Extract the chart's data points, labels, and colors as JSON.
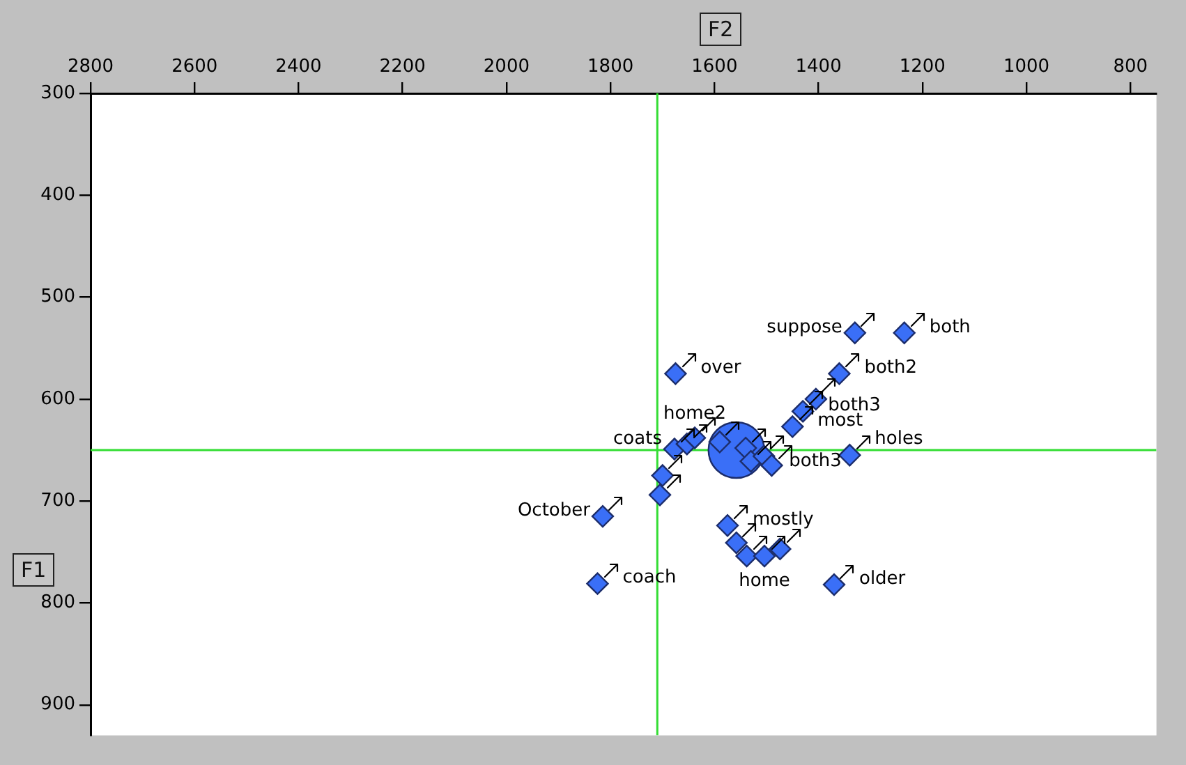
{
  "chart_data": {
    "type": "scatter",
    "xlabel": "F2",
    "ylabel": "F1",
    "xlim": [
      2800,
      750
    ],
    "xticks": [
      2800,
      2600,
      2400,
      2200,
      2000,
      1800,
      1600,
      1400,
      1200,
      1000,
      800
    ],
    "ylim": [
      930,
      300
    ],
    "yticks": [
      300,
      400,
      500,
      600,
      700,
      800,
      900
    ],
    "ref_lines": [
      {
        "axis": "x",
        "value": 1710,
        "color": "#33dd33"
      },
      {
        "axis": "y",
        "value": 650,
        "color": "#33dd33"
      }
    ],
    "series": [
      {
        "color": "#3a6ff7",
        "marker": "diamond",
        "x": [
          1330,
          1235,
          1675,
          1360,
          1405,
          1430,
          1450,
          1340,
          1590,
          1540,
          1530,
          1505,
          1490,
          1677,
          1653,
          1638,
          1700,
          1705,
          1815,
          1575,
          1558,
          1538,
          1504,
          1474,
          1825,
          1370
        ],
        "values": [
          535,
          535,
          575,
          575,
          600,
          612,
          627,
          655,
          642,
          648,
          661,
          656,
          665,
          649,
          644,
          638,
          675,
          694,
          715,
          724,
          741,
          754,
          754,
          747,
          781,
          782
        ]
      },
      {
        "type": "bubble",
        "color": "#3a6ff7",
        "x": [
          1558
        ],
        "values": [
          650
        ],
        "sizes": [
          1
        ]
      }
    ],
    "annotations": [
      {
        "text": "suppose",
        "x": 1330,
        "y": 535
      },
      {
        "text": "both",
        "x": 1235,
        "y": 535
      },
      {
        "text": "over",
        "x": 1675,
        "y": 575
      },
      {
        "text": "both2",
        "x": 1360,
        "y": 575
      },
      {
        "text": "both3",
        "x": 1430,
        "y": 612
      },
      {
        "text": "most",
        "x": 1450,
        "y": 627
      },
      {
        "text": "holes",
        "x": 1340,
        "y": 655
      },
      {
        "text": "coats",
        "x": 1677,
        "y": 649
      },
      {
        "text": "both3",
        "x": 1505,
        "y": 656
      },
      {
        "text": "home2",
        "x": 1638,
        "y": 638
      },
      {
        "text": "October",
        "x": 1815,
        "y": 715
      },
      {
        "text": "mostly",
        "x": 1575,
        "y": 724
      },
      {
        "text": "home",
        "x": 1504,
        "y": 754
      },
      {
        "text": "coach",
        "x": 1825,
        "y": 781
      },
      {
        "text": "older",
        "x": 1370,
        "y": 782
      }
    ]
  }
}
